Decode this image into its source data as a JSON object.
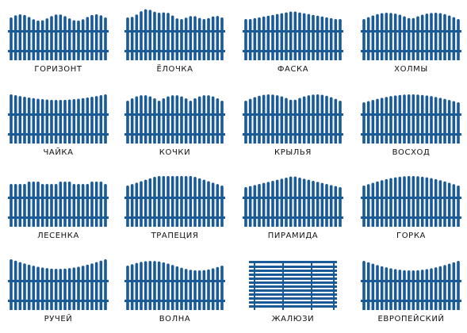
{
  "colors": {
    "fence": "#1a5a96",
    "background": "#ffffff",
    "label": "#111111"
  },
  "fences": [
    {
      "name": "ГОРИЗОНТ",
      "shape": "horizon"
    },
    {
      "name": "ЁЛОЧКА",
      "shape": "fir-tree"
    },
    {
      "name": "ФАСКА",
      "shape": "chamfer"
    },
    {
      "name": "ХОЛМЫ",
      "shape": "hills"
    },
    {
      "name": "ЧАЙКА",
      "shape": "seagull"
    },
    {
      "name": "КОЧКИ",
      "shape": "bumps"
    },
    {
      "name": "КРЫЛЬЯ",
      "shape": "wings"
    },
    {
      "name": "ВОСХОД",
      "shape": "sunrise"
    },
    {
      "name": "ЛЕСЕНКА",
      "shape": "ladder"
    },
    {
      "name": "ТРАПЕЦИЯ",
      "shape": "trapezoid"
    },
    {
      "name": "ПИРАМИДА",
      "shape": "pyramid"
    },
    {
      "name": "ГОРКА",
      "shape": "hill"
    },
    {
      "name": "РУЧЕЙ",
      "shape": "stream"
    },
    {
      "name": "ВОЛНА",
      "shape": "wave"
    },
    {
      "name": "ЖАЛЮЗИ",
      "shape": "blinds"
    },
    {
      "name": "ЕВРОПЕЙСКИЙ",
      "shape": "european"
    }
  ]
}
